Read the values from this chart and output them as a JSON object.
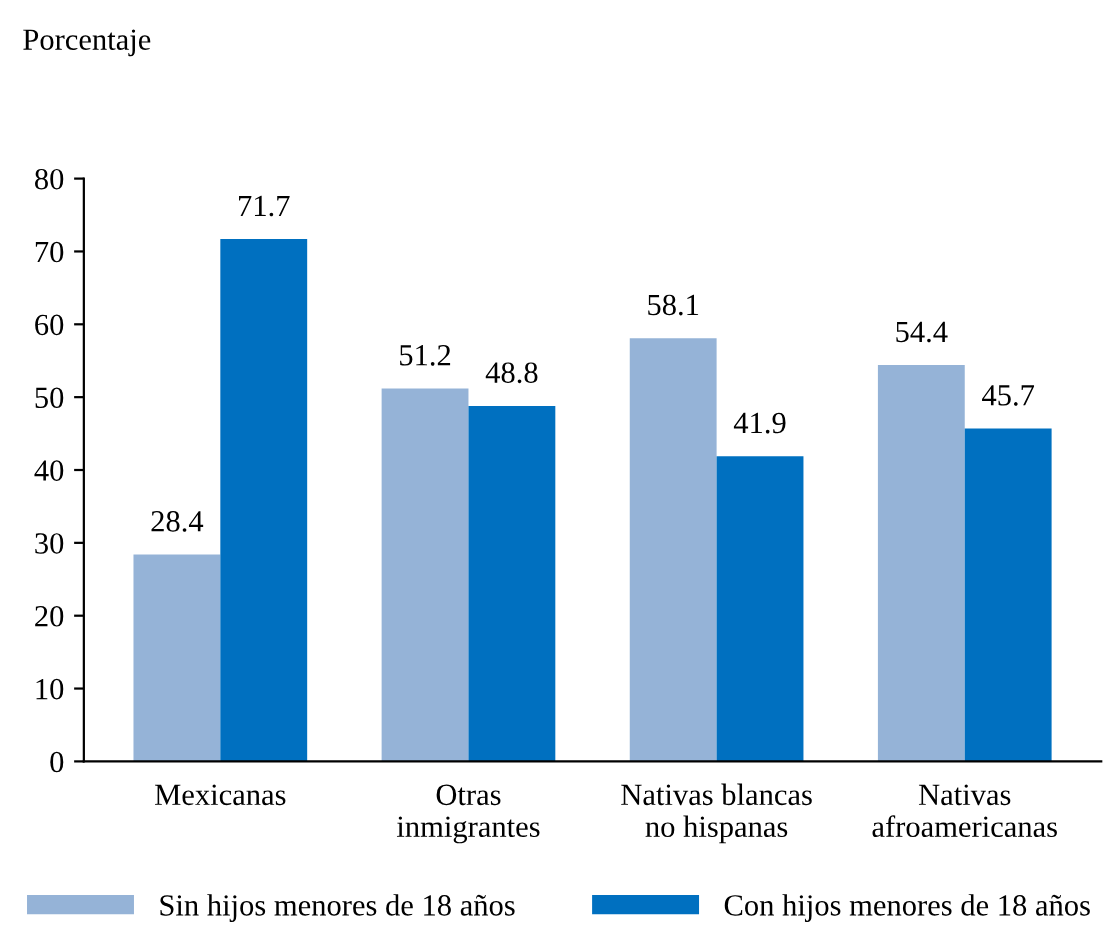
{
  "chart_data": {
    "type": "bar",
    "ylabel": "Porcentaje",
    "categories": [
      "Mexicanas",
      "Otras\ninmigrantes",
      "Nativas blancas\nno hispanas",
      "Nativas\nafroamericanas"
    ],
    "series": [
      {
        "name": "Sin hijos menores de 18 años",
        "color": "#95b3d7",
        "values": [
          28.4,
          51.2,
          58.1,
          54.4
        ]
      },
      {
        "name": "Con hijos menores de 18 años",
        "color": "#0070c0",
        "values": [
          71.7,
          48.8,
          41.9,
          45.7
        ]
      }
    ],
    "ylim": [
      0,
      80
    ],
    "yticks": [
      0,
      10,
      20,
      30,
      40,
      50,
      60,
      70,
      80
    ],
    "grid": false,
    "legend": "bottom",
    "data_labels": true
  }
}
